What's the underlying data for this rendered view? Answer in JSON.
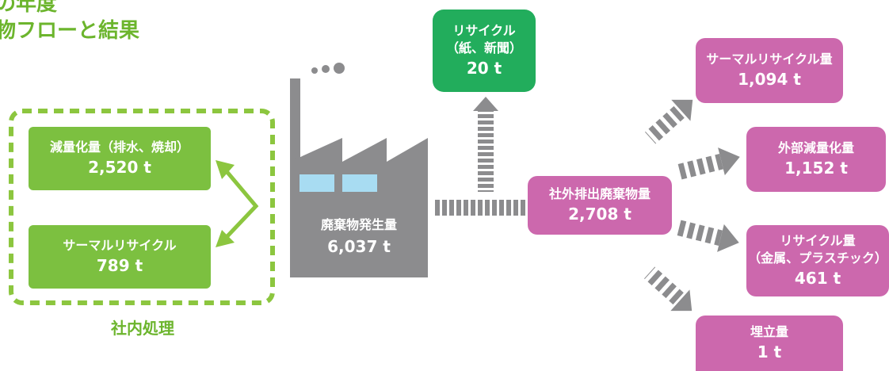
{
  "title": {
    "line1": "の年度",
    "line2": "物フローと結果"
  },
  "internal": {
    "group_label": "社内処理",
    "reduction_label": "減量化量（排水、焼却）",
    "reduction_value": "2,520 t",
    "thermal_label": "サーマルリサイクル",
    "thermal_value": "789 t"
  },
  "factory": {
    "label": "廃棄物発生量",
    "value": "6,037 t"
  },
  "recycle_paper": {
    "line1": "リサイクル",
    "line2": "（紙、新聞）",
    "value": "20 t"
  },
  "external": {
    "label": "社外排出廃棄物量",
    "value": "2,708 t"
  },
  "outputs": {
    "thermal": {
      "label": "サーマルリサイクル量",
      "value": "1,094 t"
    },
    "reduction": {
      "label": "外部減量化量",
      "value": "1,152 t"
    },
    "recycle": {
      "label": "リサイクル量",
      "sublabel": "（金属、プラスチック）",
      "value": "461 t"
    },
    "landfill": {
      "label": "埋立量",
      "value": "1 t"
    }
  },
  "colors": {
    "green": "#7cc040",
    "dark_green": "#22ad5c",
    "pink": "#cc68ad",
    "gray": "#8c8c8e",
    "window": "#a8dcf2"
  }
}
